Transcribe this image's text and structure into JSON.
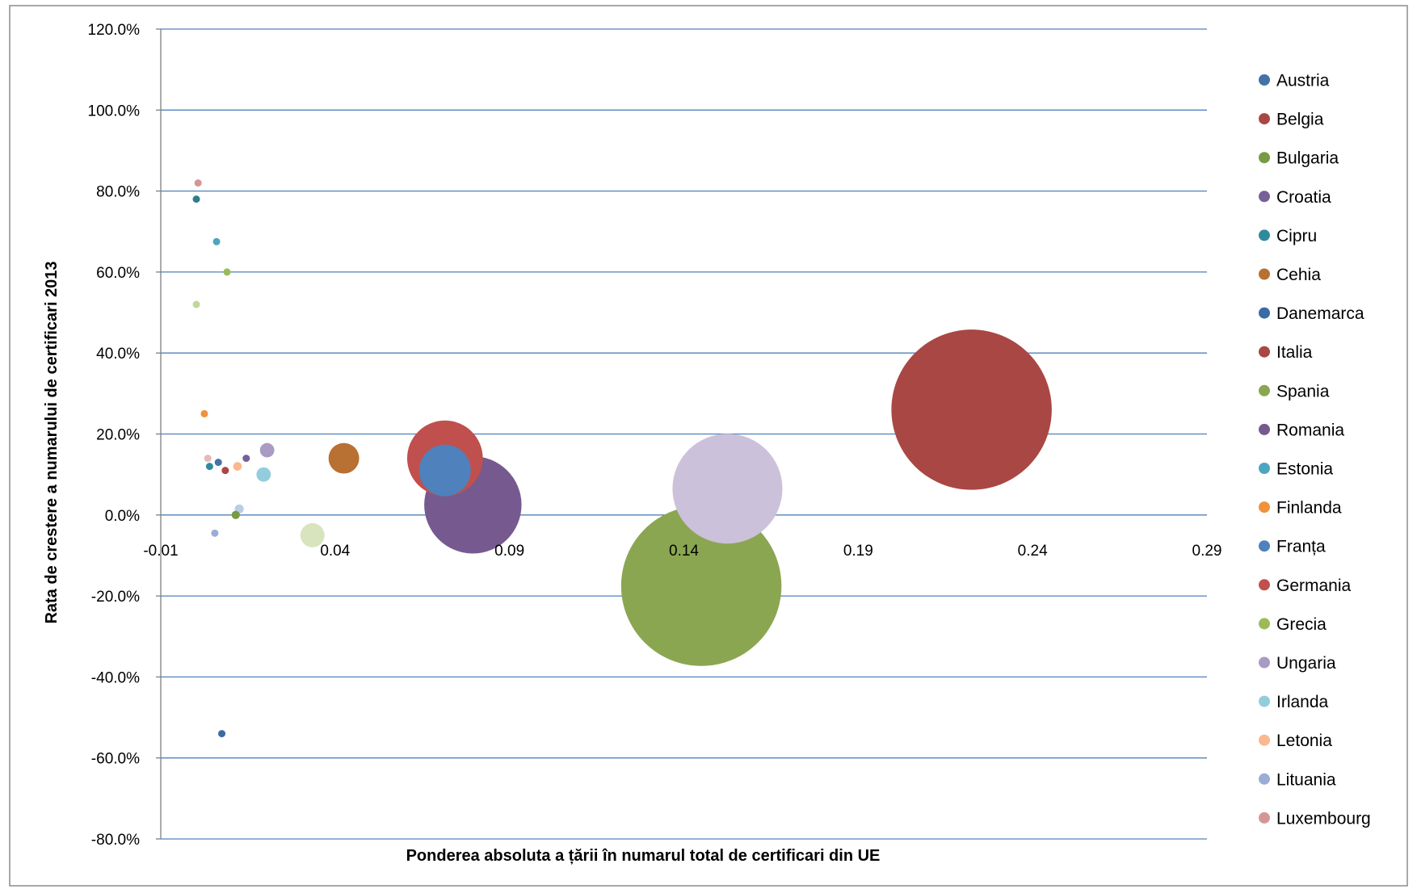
{
  "chart_data": {
    "type": "bubble",
    "title": "",
    "xlabel": "Ponderea absoluta a țării în numarul total de certificari din UE",
    "ylabel": "Rata de crestere a numarului de certificari 2013",
    "xlim": [
      -0.01,
      0.29
    ],
    "ylim": [
      -80,
      120
    ],
    "x_ticks": [
      "-0.01",
      "0.04",
      "0.09",
      "0.14",
      "0.19",
      "0.24",
      "0.29"
    ],
    "y_ticks": [
      "120.0%",
      "100.0%",
      "80.0%",
      "60.0%",
      "40.0%",
      "20.0%",
      "0.0%",
      "-20.0%",
      "-40.0%",
      "-60.0%",
      "-80.0%"
    ],
    "grid": "horizontal",
    "legend": "right",
    "series": [
      {
        "name": "Austria",
        "color": "#4472A8",
        "x": 0.0065,
        "y": 13,
        "size": 0.0065
      },
      {
        "name": "Belgia",
        "color": "#A94744",
        "x": 0.0085,
        "y": 11,
        "size": 0.0085
      },
      {
        "name": "Bulgaria",
        "color": "#779A46",
        "x": 0.0115,
        "y": 0,
        "size": 0.0115
      },
      {
        "name": "Croatia",
        "color": "#76609A",
        "x": 0.0145,
        "y": 14,
        "size": 0.008
      },
      {
        "name": "Cipru",
        "color": "#2E8B9E",
        "x": 0.004,
        "y": 12,
        "size": 0.0035
      },
      {
        "name": "Cehia",
        "color": "#B87033",
        "x": 0.0425,
        "y": 14,
        "size": 0.0425
      },
      {
        "name": "Danemarca",
        "color": "#3B6BA5",
        "x": 0.0075,
        "y": -54,
        "size": 0.0035
      },
      {
        "name": "Italia",
        "color": "#A94744",
        "x": 0.2225,
        "y": 26,
        "size": 0.2225
      },
      {
        "name": "Spania",
        "color": "#8BA651",
        "x": 0.145,
        "y": -17.5,
        "size": 0.2225
      },
      {
        "name": "Romania",
        "color": "#765A8F",
        "x": 0.0795,
        "y": 2.5,
        "size": 0.135
      },
      {
        "name": "Estonia",
        "color": "#4CA6C0",
        "x": 0.006,
        "y": 67.5,
        "size": 0.0045
      },
      {
        "name": "Finlanda",
        "color": "#F0923C",
        "x": 0.0025,
        "y": 25,
        "size": 0.0025
      },
      {
        "name": "Franța",
        "color": "#4F81BD",
        "x": 0.0715,
        "y": 11,
        "size": 0.0715
      },
      {
        "name": "Germania",
        "color": "#C0504D",
        "x": 0.0715,
        "y": 14,
        "size": 0.105
      },
      {
        "name": "Grecia",
        "color": "#9BBB59",
        "x": 0.009,
        "y": 60,
        "size": 0.009
      },
      {
        "name": "Ungaria",
        "color": "#A99BC3",
        "x": 0.0205,
        "y": 16,
        "size": 0.02
      },
      {
        "name": "Irlanda",
        "color": "#93CDDD",
        "x": 0.0195,
        "y": 10,
        "size": 0.02
      },
      {
        "name": "Letonia",
        "color": "#FBB88E",
        "x": 0.012,
        "y": 12,
        "size": 0.012
      },
      {
        "name": "Lituania",
        "color": "#9BADD6",
        "x": 0.0055,
        "y": -4.5,
        "size": 0.0055
      },
      {
        "name": "Luxembourg",
        "color": "#D49797",
        "x": 0.0007,
        "y": 82,
        "size": 0.002
      }
    ],
    "extra_points": [
      {
        "color": "#2E7D8C",
        "x": 0.0002,
        "y": 78,
        "size": 0.0015
      },
      {
        "color": "#BFD99A",
        "x": 0.0002,
        "y": 52,
        "size": 0.0012
      },
      {
        "color": "#E6B9B8",
        "x": 0.0035,
        "y": 14,
        "size": 0.0035
      },
      {
        "color": "#B9CDE5",
        "x": 0.0125,
        "y": 1.5,
        "size": 0.0125
      },
      {
        "color": "#D7E4BD",
        "x": 0.0335,
        "y": -5,
        "size": 0.0335
      },
      {
        "color": "#CCC1DA",
        "x": 0.1525,
        "y": 6.5,
        "size": 0.1525
      }
    ]
  }
}
